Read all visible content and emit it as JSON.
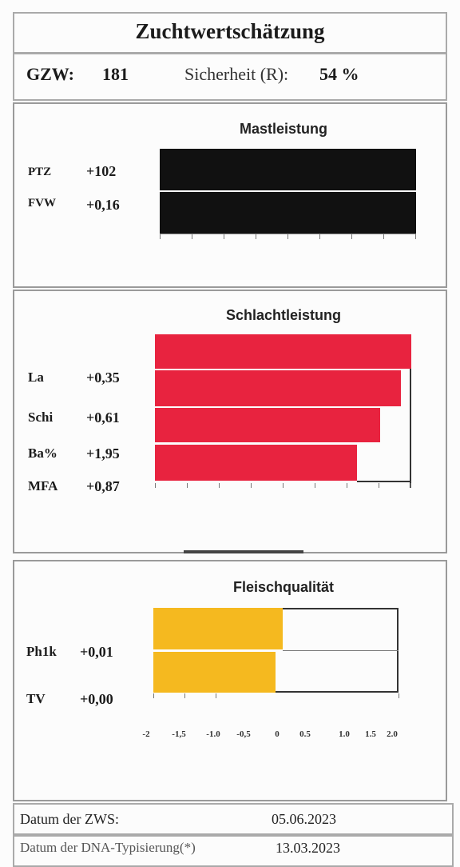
{
  "header": {
    "title": "Zuchtwertschätzung",
    "gzw_label": "GZW:",
    "gzw_value": "181",
    "reliability_label": "Sicherheit (R):",
    "reliability_value": "54 %"
  },
  "mastleistung": {
    "title": "Mastleistung",
    "rows": [
      {
        "label": "PTZ",
        "value": "+102"
      },
      {
        "label": "FVW",
        "value": "+0,16"
      }
    ],
    "bar_color": "#111111"
  },
  "schlachtleistung": {
    "title": "Schlachtleistung",
    "rows": [
      {
        "label": "La",
        "value": "+0,35"
      },
      {
        "label": "Schi",
        "value": "+0,61"
      },
      {
        "label": "Ba%",
        "value": "+1,95"
      },
      {
        "label": "MFA",
        "value": "+0,87"
      }
    ],
    "bar_color": "#e8233f"
  },
  "fleischqualitaet": {
    "title": "Fleischqualität",
    "rows": [
      {
        "label": "Ph1k",
        "value": "+0,01"
      },
      {
        "label": "TV",
        "value": "+0,00"
      }
    ],
    "bar_color": "#f5b91f",
    "axis_ticks": [
      "-2",
      "-1,5",
      "-1.0",
      "-0,5",
      "0",
      "0.5",
      "1.0",
      "1.5",
      "2.0"
    ]
  },
  "footer": {
    "zws_label": "Datum der ZWS:",
    "zws_date": "05.06.2023",
    "dna_label": "Datum der DNA-Typisierung(*)",
    "dna_date": "13.03.2023"
  }
}
